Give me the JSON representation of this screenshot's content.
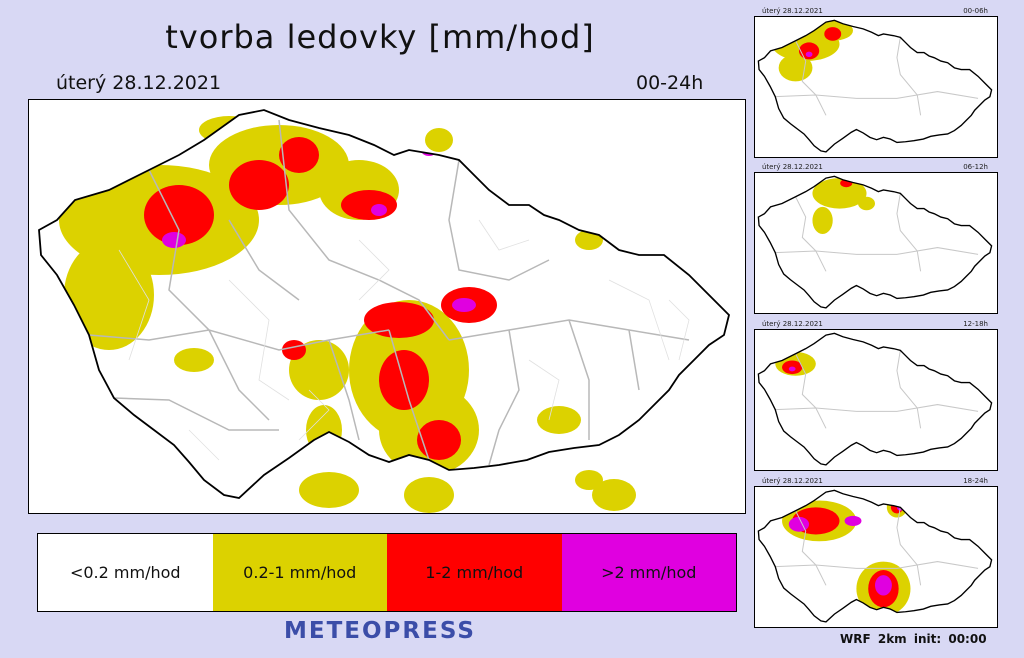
{
  "title": "tvorba ledovky [mm/hod]",
  "date": "úterý 28.12.2021",
  "range": "00-24h",
  "legend": [
    {
      "label": "<0.2 mm/hod",
      "color": "#ffffff"
    },
    {
      "label": "0.2-1 mm/hod",
      "color": "#dcd200"
    },
    {
      "label": "1-2 mm/hod",
      "color": "#ff0000"
    },
    {
      "label": ">2 mm/hod",
      "color": "#e000e0"
    }
  ],
  "brand": "METEOPRESS",
  "thumbnails": [
    {
      "date": "úterý 28.12.2021",
      "range": "00-06h"
    },
    {
      "date": "úterý 28.12.2021",
      "range": "06-12h"
    },
    {
      "date": "úterý 28.12.2021",
      "range": "12-18h"
    },
    {
      "date": "úterý 28.12.2021",
      "range": "18-24h"
    }
  ],
  "footer": "WRF 2km init: 00:00"
}
